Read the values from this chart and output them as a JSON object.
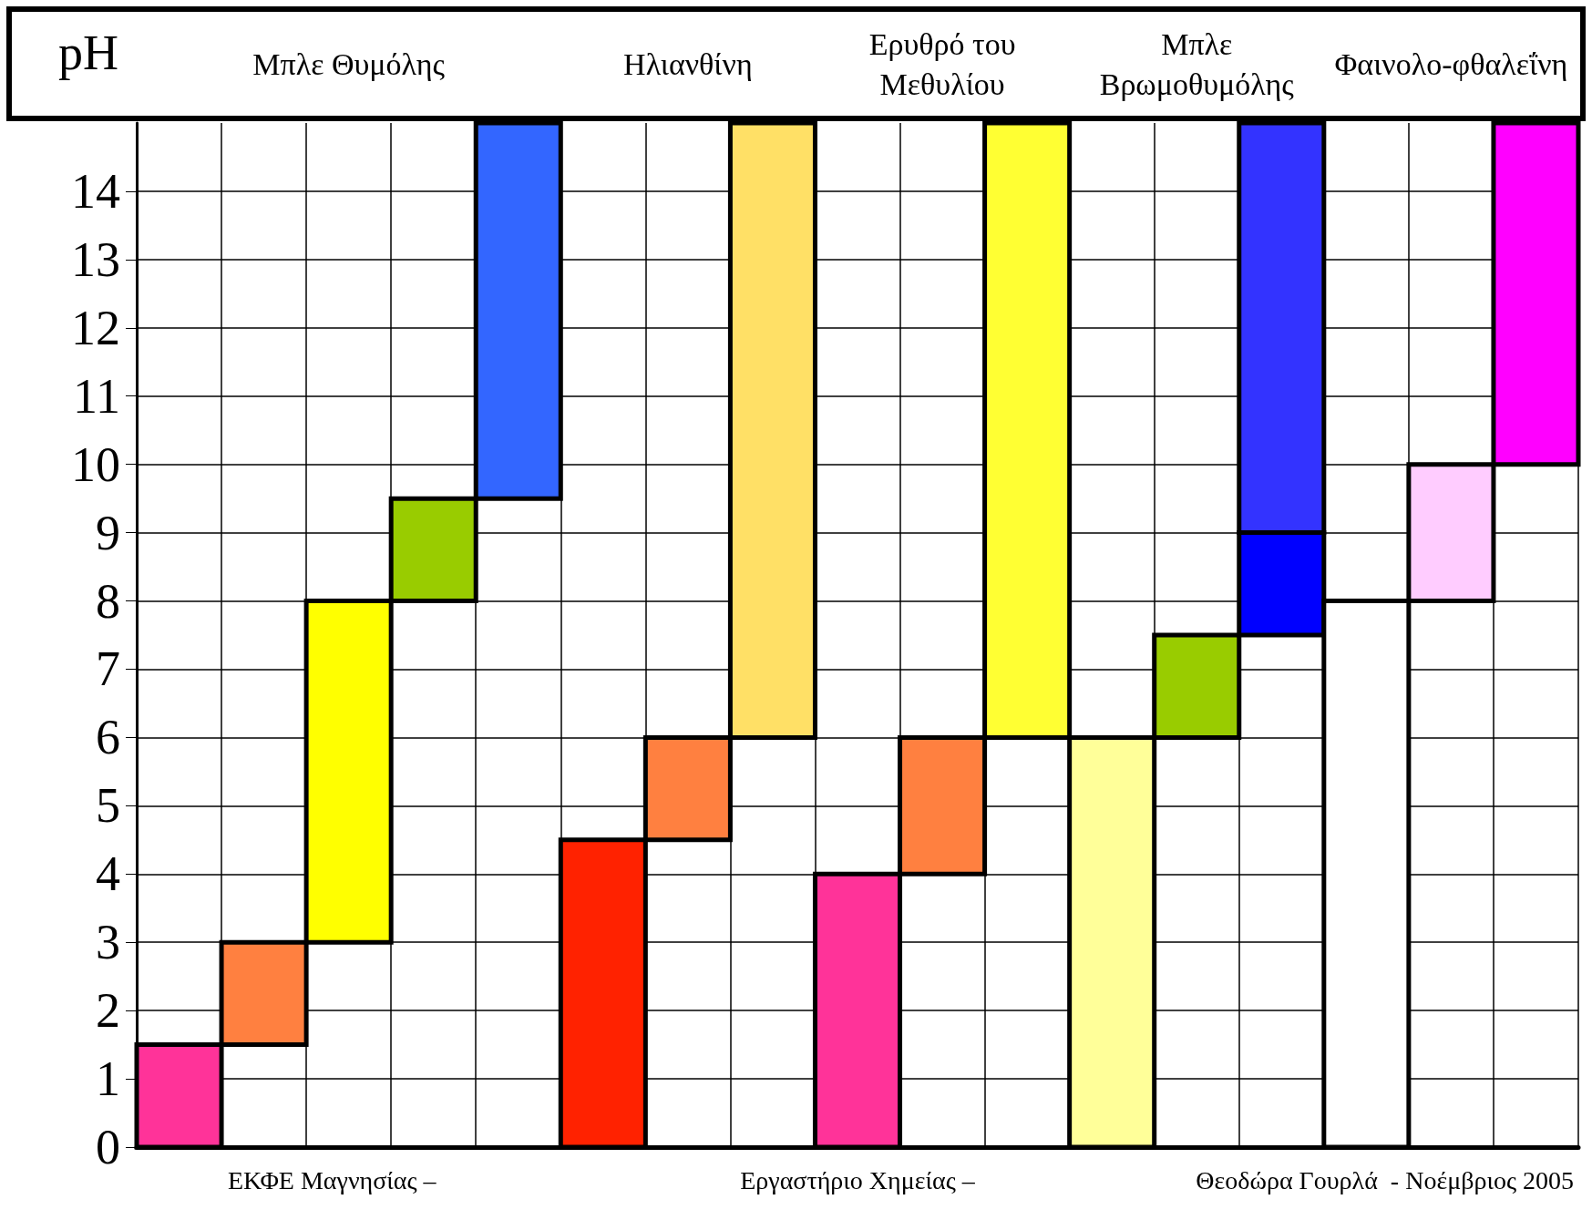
{
  "chart_data": {
    "type": "bar",
    "ylabel": "pH",
    "categories": [
      null,
      null,
      "Μπλε Θυμόλης",
      null,
      null,
      null,
      "Ηλιανθίνη",
      null,
      null,
      "Ερυθρό του Μεθυλίου",
      null,
      null,
      "Μπλε Βρωμοθυμόλης",
      null,
      null,
      "Φαινολο-φθαλεΐνη",
      null
    ],
    "series": [
      {
        "values": [
          1.5,
          1.5,
          5,
          1.5,
          5.5,
          4.5,
          1.5,
          9,
          4,
          2,
          9,
          6,
          1.5,
          1.5,
          8,
          2,
          5
        ],
        "base": [
          0,
          1.5,
          3,
          8,
          9.5,
          0,
          4.5,
          6,
          0,
          4,
          6,
          0,
          6,
          7.5,
          0,
          8,
          10
        ],
        "colors": [
          "#ff3399",
          "#ff8040",
          "#ffff00",
          "#99cc00",
          "#3366ff",
          "#ff2200",
          "#ff8040",
          "#ffe066",
          "#ff3399",
          "#ff8040",
          "#ffff33",
          "#ffff99",
          "#99cc00",
          "#0000ff",
          "#ffffff",
          "#ffccff",
          "#ff00ff"
        ]
      },
      {
        "values": [
          null,
          null,
          null,
          null,
          null,
          null,
          null,
          null,
          null,
          null,
          null,
          null,
          null,
          6,
          null,
          null,
          null
        ],
        "base": [
          null,
          null,
          null,
          null,
          null,
          null,
          null,
          null,
          null,
          null,
          null,
          null,
          null,
          9,
          null,
          null,
          null
        ],
        "color": "#3333ff"
      }
    ],
    "ylim": [
      0,
      15
    ],
    "yticks": [
      0,
      1,
      2,
      3,
      4,
      5,
      6,
      7,
      8,
      9,
      10,
      11,
      12,
      13,
      14
    ],
    "grid": true,
    "annotations": [
      "ΕΚΦΕ Μαγνησίας –",
      "Εργαστήριο Χημείας –",
      "Θεοδώρα Γουρλά  - Νοέμβριος 2005"
    ]
  }
}
